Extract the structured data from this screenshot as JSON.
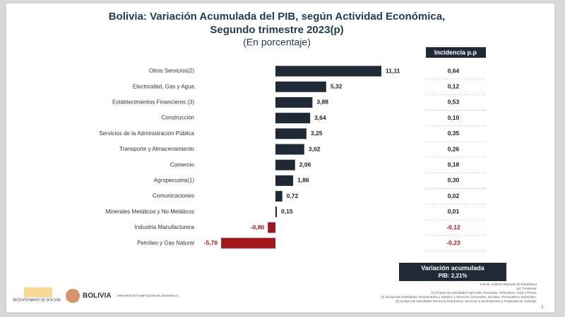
{
  "chart_data": {
    "type": "hbar",
    "title": [
      "Bolivia: Variación Acumulada del PIB, según Actividad Económica,",
      "Segundo trimestre 2023(p)"
    ],
    "subtitle": "(En porcentaje)",
    "categories": [
      "Otros Servicios(2)",
      "Electricidad, Gas y Agua",
      "Establecimientos Financieros (3)",
      "Construcción",
      "Servicios de la Administración Pública",
      "Transporte y Almacenamiento",
      "Comercio",
      "Agropecuaria(1)",
      "Comunicaciones",
      "Minerales Metálicos y No Metálicos",
      "Industria Manufacturera",
      "Petróleo y Gas Natural"
    ],
    "values": [
      11.11,
      5.32,
      3.88,
      3.64,
      3.25,
      3.02,
      2.06,
      1.86,
      0.72,
      0.15,
      -0.8,
      -5.7
    ],
    "value_labels": [
      "11,11",
      "5,32",
      "3,88",
      "3,64",
      "3,25",
      "3,02",
      "2,06",
      "1,86",
      "0,72",
      "0,15",
      "-0,80",
      "-5,70"
    ],
    "color": "#1f2a36",
    "negative_color": "#a3161a",
    "incidence": {
      "title": "Incidencia p.p",
      "values": [
        "0,64",
        "0,12",
        "0,53",
        "0,10",
        "0,35",
        "0,26",
        "0,18",
        "0,30",
        "0,02",
        "0,01",
        "-0,12",
        "-0,23"
      ]
    },
    "summary": [
      "Variación acumulada",
      "PIB: 2,21%"
    ],
    "notes": [
      "Fuente: Instituto Nacional de Estadística",
      "(p): Preliminar",
      "(1) Incluye las actividades Agrícolas, Pecuarias, Silvicultura, Caza y Pesca.",
      "(2) Incluye las actividades: Restaurantes y Hoteles, y Servicios Comunales, Sociales, Personales y Doméstico.",
      "(3) Incluye las actividades Servicios Financieros, Servicios a las Empresas y Propiedad de Vivienda."
    ],
    "logos": [
      "BICENTENARIO DE BOLIVIA",
      "BOLIVIA",
      "MINISTERIO DE PLANIFICACIÓN DEL DESARROLLO"
    ],
    "page": "3"
  }
}
